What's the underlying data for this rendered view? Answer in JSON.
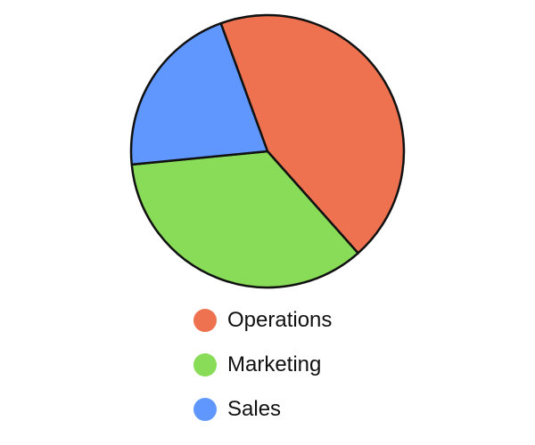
{
  "chart_data": {
    "type": "pie",
    "title": "",
    "categories": [
      "Operations",
      "Marketing",
      "Sales"
    ],
    "values": [
      44,
      35,
      21
    ],
    "colors": [
      "#ee7250",
      "#88dc58",
      "#5f97ff"
    ],
    "legend": "bottom",
    "slice_outline_color": "#111111"
  },
  "legend": {
    "items": [
      {
        "label": "Operations",
        "color": "#ee7250"
      },
      {
        "label": "Marketing",
        "color": "#88dc58"
      },
      {
        "label": "Sales",
        "color": "#5f97ff"
      }
    ]
  }
}
